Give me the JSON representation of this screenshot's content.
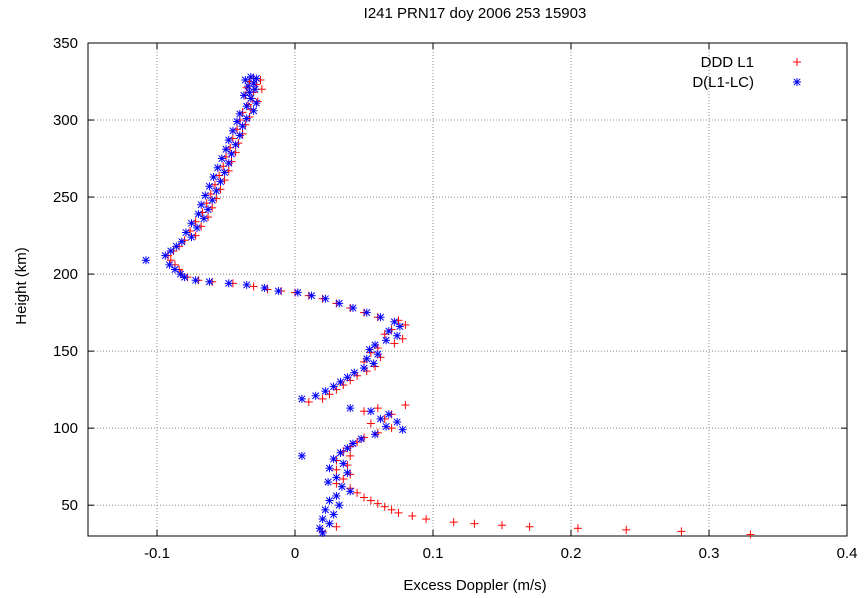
{
  "chart_data": {
    "type": "scatter",
    "title": "I241 PRN17 doy 2006 253 15903",
    "xlabel": "Excess Doppler (m/s)",
    "ylabel": "Height (km)",
    "xlim": [
      -0.15,
      0.4
    ],
    "ylim": [
      30,
      350
    ],
    "xticks": [
      -0.1,
      0,
      0.1,
      0.2,
      0.3,
      0.4
    ],
    "xtick_labels": [
      "-0.1",
      "0",
      "0.1",
      "0.2",
      "0.3",
      "0.4"
    ],
    "yticks": [
      50,
      100,
      150,
      200,
      250,
      300,
      350
    ],
    "ytick_labels": [
      "50",
      "100",
      "150",
      "200",
      "250",
      "300",
      "350"
    ],
    "grid": true,
    "legend_position": "top-right",
    "series": [
      {
        "name": "DDD L1",
        "marker": "plus",
        "color": "#ff0000",
        "points": [
          [
            -0.03,
            327
          ],
          [
            -0.025,
            326
          ],
          [
            -0.033,
            325
          ],
          [
            -0.028,
            323
          ],
          [
            -0.035,
            321
          ],
          [
            -0.024,
            320
          ],
          [
            -0.03,
            318
          ],
          [
            -0.036,
            316
          ],
          [
            -0.031,
            314
          ],
          [
            -0.027,
            312
          ],
          [
            -0.034,
            310
          ],
          [
            -0.032,
            307
          ],
          [
            -0.038,
            305
          ],
          [
            -0.033,
            302
          ],
          [
            -0.04,
            300
          ],
          [
            -0.036,
            297
          ],
          [
            -0.042,
            294
          ],
          [
            -0.038,
            291
          ],
          [
            -0.045,
            288
          ],
          [
            -0.041,
            285
          ],
          [
            -0.047,
            282
          ],
          [
            -0.043,
            279
          ],
          [
            -0.05,
            276
          ],
          [
            -0.046,
            273
          ],
          [
            -0.052,
            270
          ],
          [
            -0.048,
            267
          ],
          [
            -0.055,
            264
          ],
          [
            -0.051,
            261
          ],
          [
            -0.058,
            258
          ],
          [
            -0.054,
            255
          ],
          [
            -0.061,
            252
          ],
          [
            -0.057,
            249
          ],
          [
            -0.064,
            246
          ],
          [
            -0.06,
            243
          ],
          [
            -0.067,
            240
          ],
          [
            -0.063,
            237
          ],
          [
            -0.072,
            234
          ],
          [
            -0.068,
            231
          ],
          [
            -0.076,
            228
          ],
          [
            -0.072,
            225
          ],
          [
            -0.08,
            222
          ],
          [
            -0.084,
            218
          ],
          [
            -0.088,
            215
          ],
          [
            -0.092,
            212
          ],
          [
            -0.09,
            209
          ],
          [
            -0.087,
            206
          ],
          [
            -0.084,
            203
          ],
          [
            -0.082,
            200
          ],
          [
            -0.078,
            198
          ],
          [
            -0.07,
            196
          ],
          [
            -0.06,
            195
          ],
          [
            -0.045,
            194
          ],
          [
            -0.03,
            192
          ],
          [
            -0.02,
            190
          ],
          [
            -0.01,
            189
          ],
          [
            0.0,
            188
          ],
          [
            0.01,
            186
          ],
          [
            0.02,
            184
          ],
          [
            0.03,
            181
          ],
          [
            0.04,
            178
          ],
          [
            0.05,
            175
          ],
          [
            0.06,
            172
          ],
          [
            0.075,
            170
          ],
          [
            0.08,
            167
          ],
          [
            0.07,
            164
          ],
          [
            0.065,
            161
          ],
          [
            0.078,
            158
          ],
          [
            0.072,
            155
          ],
          [
            0.06,
            152
          ],
          [
            0.055,
            149
          ],
          [
            0.062,
            146
          ],
          [
            0.05,
            143
          ],
          [
            0.058,
            140
          ],
          [
            0.052,
            137
          ],
          [
            0.045,
            134
          ],
          [
            0.04,
            131
          ],
          [
            0.035,
            128
          ],
          [
            0.03,
            125
          ],
          [
            0.025,
            122
          ],
          [
            0.02,
            119
          ],
          [
            0.01,
            117
          ],
          [
            0.08,
            115
          ],
          [
            0.06,
            113
          ],
          [
            0.05,
            111
          ],
          [
            0.07,
            109
          ],
          [
            0.065,
            106
          ],
          [
            0.055,
            103
          ],
          [
            0.07,
            100
          ],
          [
            0.06,
            97
          ],
          [
            0.05,
            94
          ],
          [
            0.045,
            91
          ],
          [
            0.04,
            88
          ],
          [
            0.035,
            85
          ],
          [
            0.04,
            82
          ],
          [
            0.03,
            79
          ],
          [
            0.038,
            76
          ],
          [
            0.03,
            73
          ],
          [
            0.04,
            70
          ],
          [
            0.035,
            67
          ],
          [
            0.03,
            64
          ],
          [
            0.04,
            61
          ],
          [
            0.045,
            58
          ],
          [
            0.05,
            55
          ],
          [
            0.055,
            53
          ],
          [
            0.06,
            51
          ],
          [
            0.065,
            49
          ],
          [
            0.07,
            47
          ],
          [
            0.075,
            45
          ],
          [
            0.085,
            43
          ],
          [
            0.095,
            41
          ],
          [
            0.115,
            39
          ],
          [
            0.13,
            38
          ],
          [
            0.15,
            37
          ],
          [
            0.17,
            36
          ],
          [
            0.205,
            35
          ],
          [
            0.24,
            34
          ],
          [
            0.28,
            33
          ],
          [
            0.33,
            31
          ],
          [
            0.02,
            33
          ],
          [
            0.03,
            36
          ]
        ]
      },
      {
        "name": "D(L1-LC)",
        "marker": "asterisk",
        "color": "#0000ff",
        "points": [
          [
            -0.032,
            328
          ],
          [
            -0.028,
            327
          ],
          [
            -0.036,
            326
          ],
          [
            -0.03,
            324
          ],
          [
            -0.034,
            322
          ],
          [
            -0.029,
            320
          ],
          [
            -0.033,
            318
          ],
          [
            -0.037,
            316
          ],
          [
            -0.032,
            314
          ],
          [
            -0.028,
            311
          ],
          [
            -0.035,
            309
          ],
          [
            -0.03,
            306
          ],
          [
            -0.04,
            304
          ],
          [
            -0.035,
            301
          ],
          [
            -0.042,
            299
          ],
          [
            -0.038,
            296
          ],
          [
            -0.045,
            293
          ],
          [
            -0.04,
            290
          ],
          [
            -0.048,
            287
          ],
          [
            -0.043,
            284
          ],
          [
            -0.05,
            281
          ],
          [
            -0.046,
            278
          ],
          [
            -0.053,
            275
          ],
          [
            -0.048,
            272
          ],
          [
            -0.056,
            269
          ],
          [
            -0.051,
            266
          ],
          [
            -0.059,
            263
          ],
          [
            -0.054,
            260
          ],
          [
            -0.062,
            257
          ],
          [
            -0.057,
            254
          ],
          [
            -0.065,
            251
          ],
          [
            -0.06,
            248
          ],
          [
            -0.068,
            245
          ],
          [
            -0.063,
            242
          ],
          [
            -0.07,
            239
          ],
          [
            -0.066,
            236
          ],
          [
            -0.075,
            233
          ],
          [
            -0.071,
            230
          ],
          [
            -0.079,
            227
          ],
          [
            -0.075,
            224
          ],
          [
            -0.082,
            221
          ],
          [
            -0.086,
            218
          ],
          [
            -0.09,
            215
          ],
          [
            -0.094,
            212
          ],
          [
            -0.108,
            209
          ],
          [
            -0.091,
            206
          ],
          [
            -0.087,
            203
          ],
          [
            -0.083,
            200
          ],
          [
            -0.08,
            198
          ],
          [
            -0.072,
            196
          ],
          [
            -0.062,
            195
          ],
          [
            -0.048,
            194
          ],
          [
            -0.035,
            193
          ],
          [
            -0.022,
            191
          ],
          [
            -0.012,
            189
          ],
          [
            0.002,
            188
          ],
          [
            0.012,
            186
          ],
          [
            0.022,
            184
          ],
          [
            0.032,
            181
          ],
          [
            0.042,
            178
          ],
          [
            0.052,
            175
          ],
          [
            0.062,
            172
          ],
          [
            0.072,
            169
          ],
          [
            0.076,
            166
          ],
          [
            0.068,
            163
          ],
          [
            0.074,
            160
          ],
          [
            0.066,
            157
          ],
          [
            0.058,
            154
          ],
          [
            0.054,
            151
          ],
          [
            0.06,
            148
          ],
          [
            0.052,
            145
          ],
          [
            0.057,
            142
          ],
          [
            0.05,
            139
          ],
          [
            0.043,
            136
          ],
          [
            0.038,
            133
          ],
          [
            0.033,
            130
          ],
          [
            0.028,
            127
          ],
          [
            0.022,
            124
          ],
          [
            0.015,
            121
          ],
          [
            0.005,
            119
          ],
          [
            0.04,
            113
          ],
          [
            0.055,
            111
          ],
          [
            0.068,
            109
          ],
          [
            0.062,
            106
          ],
          [
            0.074,
            104
          ],
          [
            0.066,
            101
          ],
          [
            0.078,
            99
          ],
          [
            0.058,
            96
          ],
          [
            0.048,
            93
          ],
          [
            0.042,
            90
          ],
          [
            0.038,
            87
          ],
          [
            0.033,
            84
          ],
          [
            0.005,
            82
          ],
          [
            0.028,
            80
          ],
          [
            0.035,
            77
          ],
          [
            0.025,
            74
          ],
          [
            0.038,
            71
          ],
          [
            0.03,
            68
          ],
          [
            0.024,
            65
          ],
          [
            0.034,
            62
          ],
          [
            0.04,
            59
          ],
          [
            0.03,
            56
          ],
          [
            0.025,
            53
          ],
          [
            0.032,
            50
          ],
          [
            0.022,
            47
          ],
          [
            0.028,
            44
          ],
          [
            0.02,
            41
          ],
          [
            0.025,
            38
          ],
          [
            0.018,
            35
          ],
          [
            0.02,
            32
          ]
        ]
      }
    ]
  }
}
